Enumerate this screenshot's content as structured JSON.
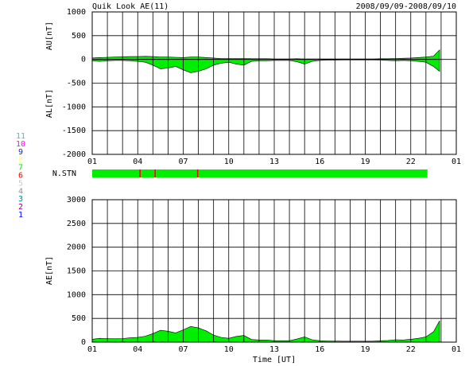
{
  "chart_data": [
    {
      "type": "area",
      "title": "Quik Look AE(11)",
      "subtitle": "2008/09/09-2008/09/10",
      "x": [
        0,
        0.5,
        1,
        1.5,
        2,
        2.5,
        3,
        3.5,
        4,
        4.5,
        5,
        5.5,
        6,
        6.5,
        7,
        7.5,
        8,
        8.5,
        9,
        9.5,
        10,
        10.5,
        11,
        11.5,
        12,
        12.5,
        13,
        13.5,
        14,
        14.5,
        15,
        15.5,
        16,
        16.5,
        17,
        17.5,
        18,
        18.5,
        19,
        19.5,
        20,
        20.5,
        21,
        21.5,
        22,
        22.5,
        22.9
      ],
      "series": [
        {
          "name": "AU[nT]",
          "color": "#00ee00",
          "values": [
            30,
            40,
            45,
            50,
            55,
            60,
            60,
            65,
            60,
            50,
            50,
            45,
            40,
            50,
            50,
            40,
            30,
            20,
            20,
            20,
            20,
            15,
            15,
            15,
            10,
            10,
            10,
            15,
            10,
            10,
            10,
            10,
            10,
            10,
            10,
            10,
            10,
            10,
            15,
            15,
            20,
            25,
            30,
            40,
            50,
            70,
            200
          ]
        },
        {
          "name": "AL[nT]",
          "color": "#00ee00",
          "values": [
            -30,
            -40,
            -30,
            -20,
            -20,
            -30,
            -40,
            -60,
            -120,
            -200,
            -180,
            -150,
            -220,
            -280,
            -250,
            -200,
            -120,
            -80,
            -60,
            -100,
            -120,
            -40,
            -30,
            -30,
            -20,
            -20,
            -20,
            -50,
            -100,
            -40,
            -20,
            -15,
            -15,
            -10,
            -10,
            -10,
            -10,
            -10,
            -15,
            -20,
            -30,
            -20,
            -30,
            -40,
            -60,
            -150,
            -250
          ]
        }
      ],
      "xlim": [
        0,
        24
      ],
      "xticks": [
        {
          "value": 0,
          "label": "01"
        },
        {
          "value": 3,
          "label": "04"
        },
        {
          "value": 6,
          "label": "07"
        },
        {
          "value": 9,
          "label": "10"
        },
        {
          "value": 12,
          "label": "13"
        },
        {
          "value": 15,
          "label": "16"
        },
        {
          "value": 18,
          "label": "19"
        },
        {
          "value": 21,
          "label": "22"
        },
        {
          "value": 24,
          "label": "01"
        }
      ],
      "xgrid": [
        0,
        1,
        2,
        3,
        4,
        5,
        6,
        7,
        8,
        9,
        10,
        11,
        12,
        13,
        14,
        15,
        16,
        17,
        18,
        19,
        20,
        21,
        22,
        23,
        24
      ],
      "ylim": [
        -2000,
        1000
      ],
      "yticks": [
        -2000,
        -1500,
        -1000,
        -500,
        0,
        500,
        1000
      ]
    },
    {
      "type": "area",
      "xlabel": "Time [UT]",
      "x": [
        0,
        0.5,
        1,
        1.5,
        2,
        2.5,
        3,
        3.5,
        4,
        4.5,
        5,
        5.5,
        6,
        6.5,
        7,
        7.5,
        8,
        8.5,
        9,
        9.5,
        10,
        10.5,
        11,
        11.5,
        12,
        12.5,
        13,
        13.5,
        14,
        14.5,
        15,
        15.5,
        16,
        16.5,
        17,
        17.5,
        18,
        18.5,
        19,
        19.5,
        20,
        20.5,
        21,
        21.5,
        22,
        22.5,
        22.9
      ],
      "series": [
        {
          "name": "AE[nT]",
          "color": "#00ee00",
          "values": [
            60,
            80,
            75,
            70,
            75,
            90,
            100,
            125,
            180,
            250,
            230,
            195,
            260,
            330,
            300,
            240,
            150,
            100,
            80,
            120,
            140,
            55,
            45,
            45,
            30,
            30,
            30,
            65,
            110,
            50,
            30,
            25,
            25,
            20,
            20,
            20,
            20,
            20,
            30,
            35,
            50,
            45,
            60,
            80,
            110,
            220,
            450
          ]
        }
      ],
      "xlim": [
        0,
        24
      ],
      "xticks": [
        {
          "value": 0,
          "label": "01"
        },
        {
          "value": 3,
          "label": "04"
        },
        {
          "value": 6,
          "label": "07"
        },
        {
          "value": 9,
          "label": "10"
        },
        {
          "value": 12,
          "label": "13"
        },
        {
          "value": 15,
          "label": "16"
        },
        {
          "value": 18,
          "label": "19"
        },
        {
          "value": 21,
          "label": "22"
        },
        {
          "value": 24,
          "label": "01"
        }
      ],
      "xgrid": [
        0,
        1,
        2,
        3,
        4,
        5,
        6,
        7,
        8,
        9,
        10,
        11,
        12,
        13,
        14,
        15,
        16,
        17,
        18,
        19,
        20,
        21,
        22,
        23,
        24
      ],
      "ylim": [
        0,
        3000
      ],
      "yticks": [
        0,
        500,
        1000,
        1500,
        2000,
        2500,
        3000
      ]
    }
  ],
  "station_bar": {
    "label": "N.STN",
    "segments": [
      {
        "start": 0,
        "end": 3.1,
        "stations": 7
      },
      {
        "start": 3.1,
        "end": 3.2,
        "stations": 6
      },
      {
        "start": 3.2,
        "end": 4.1,
        "stations": 7
      },
      {
        "start": 4.1,
        "end": 4.2,
        "stations": 6
      },
      {
        "start": 4.2,
        "end": 6.9,
        "stations": 7
      },
      {
        "start": 6.9,
        "end": 7.0,
        "stations": 6
      },
      {
        "start": 7.0,
        "end": 22.1,
        "stations": 7
      }
    ]
  },
  "station_legend": {
    "labels": [
      11,
      10,
      9,
      8,
      7,
      6,
      5,
      4,
      3,
      2,
      1
    ],
    "colors": [
      "#00d8ff",
      "#ff00ff",
      "#2020b0",
      "#ffff80",
      "#00ee00",
      "#ff0000",
      "#c8c8c8",
      "#909090",
      "#008888",
      "#900090",
      "#0000ff"
    ]
  }
}
